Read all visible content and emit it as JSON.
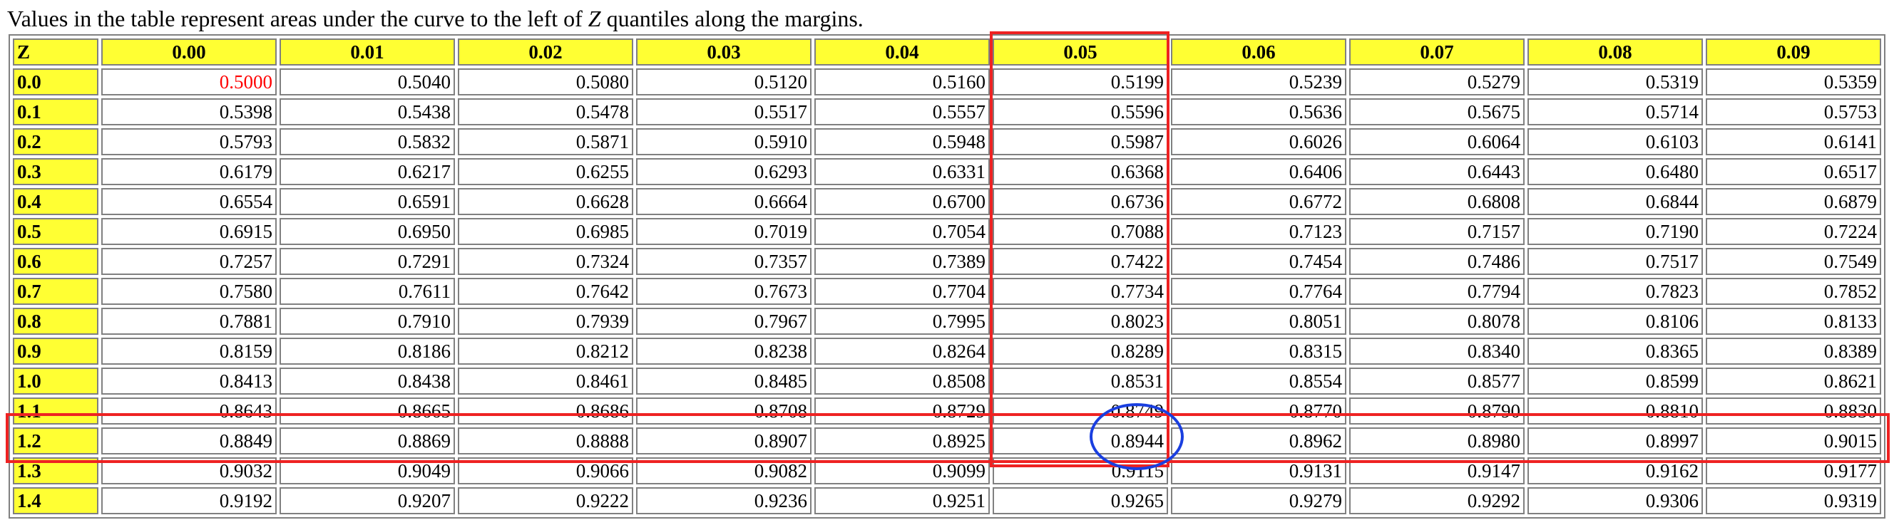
{
  "caption": {
    "before": "Values in the table represent areas under the curve to the left of ",
    "variable": "Z",
    "after": " quantiles along the margins."
  },
  "table": {
    "corner_label": "Z",
    "columns": [
      "0.00",
      "0.01",
      "0.02",
      "0.03",
      "0.04",
      "0.05",
      "0.06",
      "0.07",
      "0.08",
      "0.09"
    ],
    "rows": [
      {
        "z": "0.0",
        "values": [
          "0.5000",
          "0.5040",
          "0.5080",
          "0.5120",
          "0.5160",
          "0.5199",
          "0.5239",
          "0.5279",
          "0.5319",
          "0.5359"
        ]
      },
      {
        "z": "0.1",
        "values": [
          "0.5398",
          "0.5438",
          "0.5478",
          "0.5517",
          "0.5557",
          "0.5596",
          "0.5636",
          "0.5675",
          "0.5714",
          "0.5753"
        ]
      },
      {
        "z": "0.2",
        "values": [
          "0.5793",
          "0.5832",
          "0.5871",
          "0.5910",
          "0.5948",
          "0.5987",
          "0.6026",
          "0.6064",
          "0.6103",
          "0.6141"
        ]
      },
      {
        "z": "0.3",
        "values": [
          "0.6179",
          "0.6217",
          "0.6255",
          "0.6293",
          "0.6331",
          "0.6368",
          "0.6406",
          "0.6443",
          "0.6480",
          "0.6517"
        ]
      },
      {
        "z": "0.4",
        "values": [
          "0.6554",
          "0.6591",
          "0.6628",
          "0.6664",
          "0.6700",
          "0.6736",
          "0.6772",
          "0.6808",
          "0.6844",
          "0.6879"
        ]
      },
      {
        "z": "0.5",
        "values": [
          "0.6915",
          "0.6950",
          "0.6985",
          "0.7019",
          "0.7054",
          "0.7088",
          "0.7123",
          "0.7157",
          "0.7190",
          "0.7224"
        ]
      },
      {
        "z": "0.6",
        "values": [
          "0.7257",
          "0.7291",
          "0.7324",
          "0.7357",
          "0.7389",
          "0.7422",
          "0.7454",
          "0.7486",
          "0.7517",
          "0.7549"
        ]
      },
      {
        "z": "0.7",
        "values": [
          "0.7580",
          "0.7611",
          "0.7642",
          "0.7673",
          "0.7704",
          "0.7734",
          "0.7764",
          "0.7794",
          "0.7823",
          "0.7852"
        ]
      },
      {
        "z": "0.8",
        "values": [
          "0.7881",
          "0.7910",
          "0.7939",
          "0.7967",
          "0.7995",
          "0.8023",
          "0.8051",
          "0.8078",
          "0.8106",
          "0.8133"
        ]
      },
      {
        "z": "0.9",
        "values": [
          "0.8159",
          "0.8186",
          "0.8212",
          "0.8238",
          "0.8264",
          "0.8289",
          "0.8315",
          "0.8340",
          "0.8365",
          "0.8389"
        ]
      },
      {
        "z": "1.0",
        "values": [
          "0.8413",
          "0.8438",
          "0.8461",
          "0.8485",
          "0.8508",
          "0.8531",
          "0.8554",
          "0.8577",
          "0.8599",
          "0.8621"
        ]
      },
      {
        "z": "1.1",
        "values": [
          "0.8643",
          "0.8665",
          "0.8686",
          "0.8708",
          "0.8729",
          "0.8749",
          "0.8770",
          "0.8790",
          "0.8810",
          "0.8830"
        ]
      },
      {
        "z": "1.2",
        "values": [
          "0.8849",
          "0.8869",
          "0.8888",
          "0.8907",
          "0.8925",
          "0.8944",
          "0.8962",
          "0.8980",
          "0.8997",
          "0.9015"
        ]
      },
      {
        "z": "1.3",
        "values": [
          "0.9032",
          "0.9049",
          "0.9066",
          "0.9082",
          "0.9099",
          "0.9115",
          "0.9131",
          "0.9147",
          "0.9162",
          "0.9177"
        ]
      },
      {
        "z": "1.4",
        "values": [
          "0.9192",
          "0.9207",
          "0.9222",
          "0.9236",
          "0.9251",
          "0.9265",
          "0.9279",
          "0.9292",
          "0.9306",
          "0.9319"
        ]
      }
    ]
  },
  "highlight": {
    "row_z": "1.2",
    "column": "0.05",
    "circled_value": "0.8944",
    "red_text_value": "0.5000"
  },
  "colors": {
    "header_background": "#ffff33",
    "highlight_box": "#ee2222",
    "circle": "#1a3fe0",
    "red_text": "#ff0000",
    "cell_border": "#808080"
  }
}
